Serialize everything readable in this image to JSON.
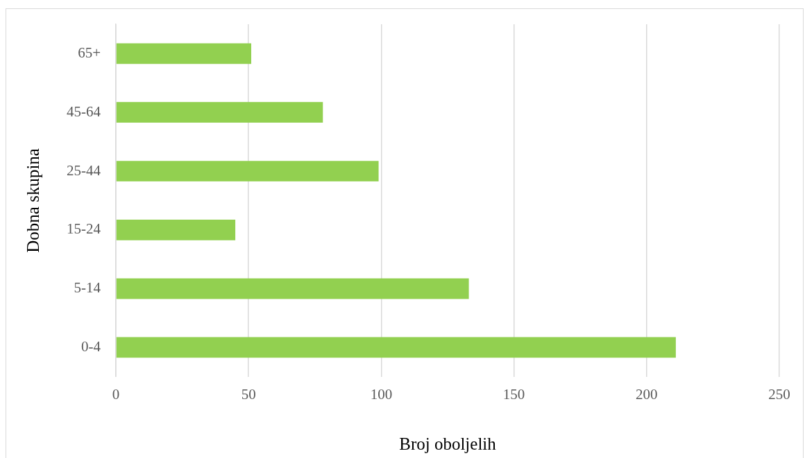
{
  "chart_data": {
    "type": "bar",
    "orientation": "horizontal",
    "xlabel": "Broj oboljelih",
    "ylabel": "Dobna skupina",
    "categories": [
      "65+",
      "45-64",
      "25-44",
      "15-24",
      "5-14",
      "0-4"
    ],
    "values": [
      51,
      78,
      99,
      45,
      133,
      211
    ],
    "color": "#92d050",
    "xlim": [
      0,
      250
    ],
    "xticks": [
      0,
      50,
      100,
      150,
      200,
      250
    ],
    "grid": "x"
  }
}
